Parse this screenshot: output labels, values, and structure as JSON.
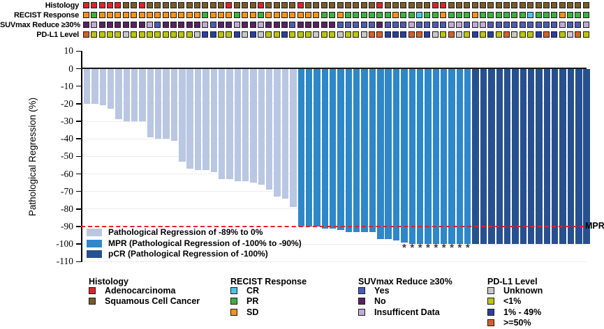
{
  "annotation": {
    "palette": {
      "A": "#e0222a",
      "S": "#7a5b28",
      "C": "#4ec3e9",
      "G": "#3faf3f",
      "O": "#f5921f",
      "U": "#4c5cb8",
      "P": "#5a2165",
      "L": "#c2aad6",
      "N": "#c9c9c9",
      "Y": "#bcc414",
      "B": "#2b3f9e",
      "R": "#d0622c"
    },
    "rows": [
      {
        "label": "Histology",
        "cells": [
          "A",
          "A",
          "A",
          "A",
          "A",
          "S",
          "S",
          "A",
          "S",
          "S",
          "S",
          "S",
          "S",
          "S",
          "S",
          "S",
          "S",
          "S",
          "A",
          "S",
          "S",
          "S",
          "A",
          "S",
          "S",
          "S",
          "S",
          "A",
          "S",
          "S",
          "S",
          "S",
          "S",
          "S",
          "S",
          "S",
          "S",
          "A",
          "S",
          "S",
          "S",
          "S",
          "S",
          "S",
          "A",
          "A",
          "S",
          "S",
          "S",
          "S",
          "S",
          "S",
          "S",
          "S",
          "S",
          "S",
          "S",
          "S",
          "S",
          "S",
          "S",
          "S",
          "S",
          "S"
        ]
      },
      {
        "label": "RECIST Response",
        "cells": [
          "O",
          "G",
          "O",
          "O",
          "O",
          "O",
          "O",
          "O",
          "O",
          "O",
          "O",
          "O",
          "O",
          "O",
          "O",
          "G",
          "O",
          "O",
          "O",
          "G",
          "O",
          "O",
          "G",
          "O",
          "O",
          "O",
          "O",
          "O",
          "O",
          "O",
          "G",
          "G",
          "O",
          "G",
          "G",
          "G",
          "G",
          "G",
          "G",
          "O",
          "G",
          "G",
          "C",
          "G",
          "G",
          "O",
          "G",
          "G",
          "G",
          "O",
          "G",
          "G",
          "G",
          "G",
          "G",
          "G",
          "C",
          "G",
          "G",
          "G",
          "O",
          "G",
          "G",
          "G"
        ]
      },
      {
        "label": "SUVmax Reduce ≥30%",
        "cells": [
          "P",
          "L",
          "P",
          "P",
          "P",
          "P",
          "P",
          "P",
          "L",
          "U",
          "P",
          "P",
          "P",
          "P",
          "P",
          "L",
          "U",
          "P",
          "P",
          "L",
          "P",
          "P",
          "L",
          "P",
          "P",
          "P",
          "U",
          "P",
          "P",
          "P",
          "P",
          "P",
          "U",
          "U",
          "U",
          "U",
          "U",
          "P",
          "U",
          "U",
          "U",
          "L",
          "U",
          "U",
          "U",
          "U",
          "L",
          "L",
          "U",
          "L",
          "L",
          "U",
          "U",
          "U",
          "U",
          "U",
          "U",
          "U",
          "U",
          "U",
          "L",
          "U",
          "U",
          "L"
        ]
      },
      {
        "label": "PD-L1 Level",
        "cells": [
          "R",
          "Y",
          "Y",
          "Y",
          "Y",
          "N",
          "Y",
          "Y",
          "Y",
          "Y",
          "Y",
          "Y",
          "Y",
          "Y",
          "N",
          "B",
          "B",
          "Y",
          "Y",
          "B",
          "N",
          "B",
          "N",
          "Y",
          "Y",
          "B",
          "Y",
          "Y",
          "Y",
          "N",
          "Y",
          "Y",
          "N",
          "Y",
          "Y",
          "N",
          "R",
          "R",
          "B",
          "B",
          "B",
          "R",
          "R",
          "B",
          "N",
          "Y",
          "R",
          "N",
          "Y",
          "B",
          "Y",
          "B",
          "Y",
          "R",
          "N",
          "Y",
          "Y",
          "B",
          "R",
          "B",
          "Y",
          "N",
          "R",
          "Y"
        ]
      }
    ]
  },
  "chart_data": {
    "type": "bar",
    "subtype": "waterfall",
    "title": "",
    "xlabel": "",
    "ylabel": "Pathological Regression (%)",
    "ylim": [
      -110,
      10
    ],
    "yticks": [
      10,
      0,
      -10,
      -20,
      -30,
      -40,
      -50,
      -60,
      -70,
      -80,
      -90,
      -100,
      -110
    ],
    "n_bars": 64,
    "values": [
      -20,
      -20,
      -21,
      -23,
      -29,
      -30,
      -30,
      -30,
      -39,
      -40,
      -40,
      -41,
      -53,
      -57,
      -58,
      -58,
      -59,
      -63,
      -63,
      -64,
      -64,
      -65,
      -66,
      -69,
      -73,
      -74,
      -79,
      -90,
      -90,
      -90,
      -91,
      -91,
      -92,
      -93,
      -93,
      -93,
      -93,
      -97,
      -97,
      -98,
      -99,
      -100,
      -100,
      -100,
      -100,
      -100,
      -100,
      -100,
      -100,
      -100,
      -100,
      -100,
      -100,
      -100,
      -100,
      -100,
      -100,
      -100,
      -100,
      -100,
      -100,
      -100,
      -100,
      -100
    ],
    "group_counts": [
      {
        "group": "reg",
        "count": 27
      },
      {
        "group": "mpr",
        "count": 22
      },
      {
        "group": "pcr",
        "count": 15
      }
    ],
    "group_colors": {
      "reg": "#b9c7e3",
      "mpr": "#2e87c8",
      "pcr": "#27508e"
    },
    "reference_line": {
      "value": -90,
      "label": "MPR",
      "color": "#ee1c25",
      "style": "dashed"
    },
    "asterisk_bar_indices": [
      40,
      41,
      42,
      43,
      44,
      45,
      46,
      47,
      48
    ],
    "asterisk_symbol": "*",
    "legend": {
      "position": "inside-bottom-left",
      "entries": [
        {
          "group": "reg",
          "label": "Pathological Regression of -89% to 0%",
          "color": "#b9c7e3"
        },
        {
          "group": "mpr",
          "label": "MPR (Pathological Regression of -100% to -90%)",
          "color": "#2e87c8"
        },
        {
          "group": "pcr",
          "label": "pCR (Pathological Regression of -100%)",
          "color": "#27508e"
        }
      ]
    }
  },
  "legend_groups": [
    {
      "title": "Histology",
      "items": [
        {
          "label": "Adenocarcinoma",
          "color_key": "A"
        },
        {
          "label": "Squamous Cell Cancer",
          "color_key": "S"
        }
      ]
    },
    {
      "title": "RECIST Response",
      "items": [
        {
          "label": "CR",
          "color_key": "C"
        },
        {
          "label": "PR",
          "color_key": "G"
        },
        {
          "label": "SD",
          "color_key": "O"
        }
      ]
    },
    {
      "title": "SUVmax Reduce ≥30%",
      "items": [
        {
          "label": "Yes",
          "color_key": "U"
        },
        {
          "label": "No",
          "color_key": "P"
        },
        {
          "label": "Insufficent Data",
          "color_key": "L"
        }
      ]
    },
    {
      "title": "PD-L1 Level",
      "items": [
        {
          "label": "Unknown",
          "color_key": "N"
        },
        {
          "label": "<1%",
          "color_key": "Y"
        },
        {
          "label": "1% - 49%",
          "color_key": "B"
        },
        {
          "label": ">=50%",
          "color_key": "R"
        }
      ]
    }
  ]
}
